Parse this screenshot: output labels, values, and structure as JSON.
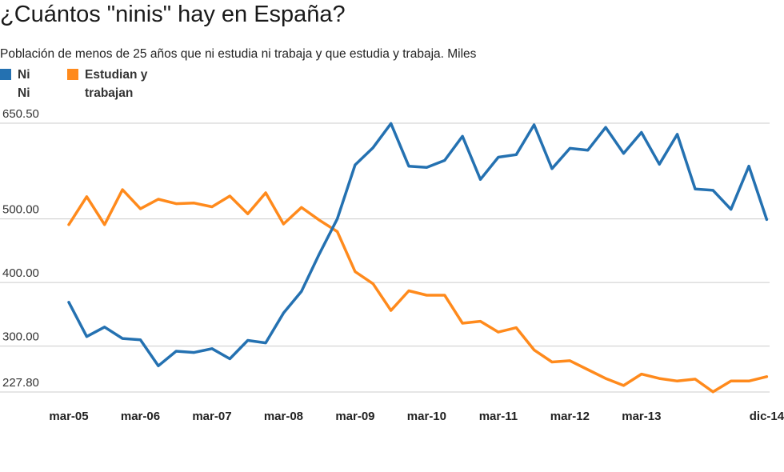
{
  "chart_data": {
    "type": "line",
    "title": "¿Cuántos \"ninis\" hay en España?",
    "subtitle": "Población de menos de 25 años que ni estudia ni trabaja y que estudia y trabaja. Miles",
    "ylim": [
      227.8,
      650.5
    ],
    "yticks": [
      "650.50",
      "500.00",
      "400.00",
      "300.00",
      "227.80"
    ],
    "ytick_values": [
      650.5,
      500,
      400,
      300,
      227.8
    ],
    "xtick_labels": [
      "mar-05",
      "mar-06",
      "mar-07",
      "mar-08",
      "mar-09",
      "mar-10",
      "mar-11",
      "mar-12",
      "mar-13",
      "dic-14"
    ],
    "xtick_index": [
      0,
      4,
      8,
      12,
      16,
      20,
      24,
      28,
      32,
      39
    ],
    "grid": true,
    "legend_position": "top-left",
    "series": [
      {
        "name": "Ni Ni",
        "name_lines": [
          "Ni",
          "Ni"
        ],
        "color": "#2471b1",
        "values": [
          369,
          315,
          330,
          312,
          310,
          269,
          292,
          290,
          296,
          280,
          309,
          305,
          352,
          386,
          445,
          500,
          585,
          612,
          650,
          583,
          581,
          592,
          630,
          562,
          597,
          601,
          648,
          579,
          611,
          608,
          644,
          603,
          636,
          586,
          633,
          547,
          545,
          515,
          583,
          499
        ]
      },
      {
        "name": "Estudian y trabajan",
        "name_lines": [
          "Estudian y",
          "trabajan"
        ],
        "color": "#ff8a1c",
        "values": [
          491,
          535,
          491,
          546,
          516,
          531,
          524,
          525,
          519,
          536,
          508,
          541,
          492,
          518,
          498,
          480,
          417,
          398,
          356,
          387,
          380,
          380,
          336,
          339,
          322,
          329,
          294,
          275,
          277,
          263,
          249,
          238,
          256,
          249,
          245,
          248,
          228,
          245,
          245,
          252
        ]
      }
    ]
  }
}
